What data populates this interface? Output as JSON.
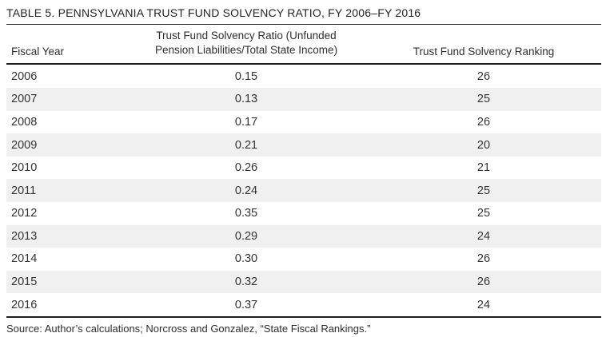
{
  "table": {
    "title": "TABLE 5. PENNSYLVANIA TRUST FUND SOLVENCY RATIO, FY 2006–FY 2016",
    "columns": [
      {
        "label": "Fiscal Year"
      },
      {
        "label": "Trust Fund Solvency Ratio (Unfunded Pension Liabilities/Total State Income)"
      },
      {
        "label": "Trust Fund Solvency Ranking"
      }
    ],
    "rows": [
      {
        "fiscal_year": "2006",
        "ratio": "0.15",
        "ranking": "26"
      },
      {
        "fiscal_year": "2007",
        "ratio": "0.13",
        "ranking": "25"
      },
      {
        "fiscal_year": "2008",
        "ratio": "0.17",
        "ranking": "26"
      },
      {
        "fiscal_year": "2009",
        "ratio": "0.21",
        "ranking": "20"
      },
      {
        "fiscal_year": "2010",
        "ratio": "0.26",
        "ranking": "21"
      },
      {
        "fiscal_year": "2011",
        "ratio": "0.24",
        "ranking": "25"
      },
      {
        "fiscal_year": "2012",
        "ratio": "0.35",
        "ranking": "25"
      },
      {
        "fiscal_year": "2013",
        "ratio": "0.29",
        "ranking": "24"
      },
      {
        "fiscal_year": "2014",
        "ratio": "0.30",
        "ranking": "26"
      },
      {
        "fiscal_year": "2015",
        "ratio": "0.32",
        "ranking": "26"
      },
      {
        "fiscal_year": "2016",
        "ratio": "0.37",
        "ranking": "24"
      }
    ],
    "source": "Source: Author’s calculations; Norcross and Gonzalez, “State Fiscal Rankings.”"
  },
  "colors": {
    "stripe": "#f0f0f0",
    "rule": "#1e1e1e",
    "text": "#2e2e2e"
  },
  "chart_data": {
    "type": "table",
    "title": "TABLE 5. PENNSYLVANIA TRUST FUND SOLVENCY RATIO, FY 2006–FY 2016",
    "categories": [
      "2006",
      "2007",
      "2008",
      "2009",
      "2010",
      "2011",
      "2012",
      "2013",
      "2014",
      "2015",
      "2016"
    ],
    "series": [
      {
        "name": "Trust Fund Solvency Ratio (Unfunded Pension Liabilities/Total State Income)",
        "values": [
          0.15,
          0.13,
          0.17,
          0.21,
          0.26,
          0.24,
          0.35,
          0.29,
          0.3,
          0.32,
          0.37
        ]
      },
      {
        "name": "Trust Fund Solvency Ranking",
        "values": [
          26,
          25,
          26,
          20,
          21,
          25,
          25,
          24,
          26,
          26,
          24
        ]
      }
    ]
  }
}
